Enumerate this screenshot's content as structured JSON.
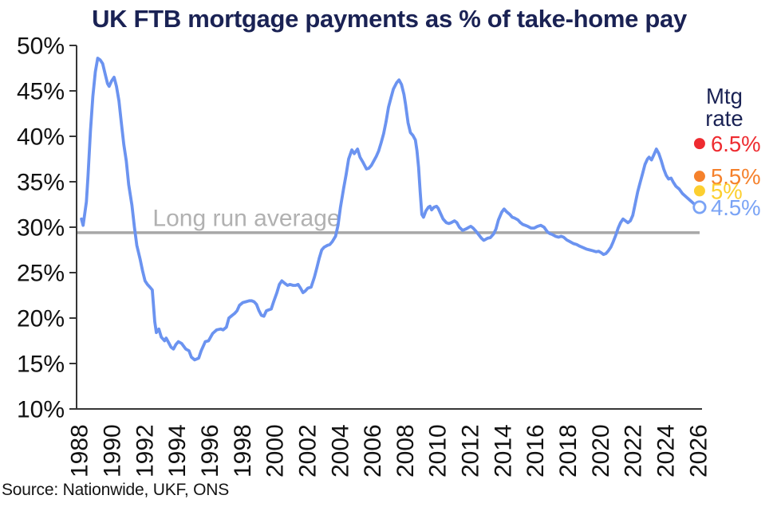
{
  "page": {
    "title": "UK FTB mortgage payments as % of take-home pay",
    "source": "Source: Nationwide, UKF, ONS"
  },
  "colors": {
    "title": "#1a2254",
    "line": "#6b93f0",
    "average_line": "#a7a7a7",
    "average_label": "#b1b1b1",
    "axis": "#363636",
    "tick_label": "#111111",
    "legend_title": "#1a2254",
    "rate_6_5": "#ee2b30",
    "rate_5_5": "#f5812c",
    "rate_5": "#fccf30",
    "rate_4_5": "#7aa3f5",
    "background": "#ffffff"
  },
  "chart_data": {
    "type": "line",
    "title": "UK FTB mortgage payments as % of take-home pay",
    "source": "Source: Nationwide, UKF, ONS",
    "xlabel": "",
    "ylabel": "",
    "xlim": [
      1987.8,
      2026.2
    ],
    "ylim": [
      10,
      50
    ],
    "yticks": [
      10,
      15,
      20,
      25,
      30,
      35,
      40,
      45,
      50
    ],
    "ytick_suffix": "%",
    "xticks": [
      1988,
      1990,
      1992,
      1994,
      1996,
      1998,
      2000,
      2002,
      2004,
      2006,
      2008,
      2010,
      2012,
      2014,
      2016,
      2018,
      2020,
      2022,
      2024,
      2026
    ],
    "grid": false,
    "average_line": {
      "label": "Long run average",
      "value": 29.4
    },
    "series": [
      {
        "name": "FTB mortgage payments as % of take-home pay",
        "color": "#6b93f0",
        "points": [
          [
            1988.1,
            30.9
          ],
          [
            1988.2,
            30.2
          ],
          [
            1988.4,
            32.8
          ],
          [
            1988.5,
            35.6
          ],
          [
            1988.65,
            40.6
          ],
          [
            1988.8,
            44.4
          ],
          [
            1988.95,
            47.1
          ],
          [
            1989.1,
            48.6
          ],
          [
            1989.25,
            48.4
          ],
          [
            1989.4,
            48.0
          ],
          [
            1989.55,
            46.9
          ],
          [
            1989.7,
            45.8
          ],
          [
            1989.8,
            45.5
          ],
          [
            1989.95,
            46.1
          ],
          [
            1990.1,
            46.5
          ],
          [
            1990.25,
            45.5
          ],
          [
            1990.4,
            43.9
          ],
          [
            1990.55,
            41.5
          ],
          [
            1990.7,
            39.1
          ],
          [
            1990.85,
            37.3
          ],
          [
            1991.0,
            34.7
          ],
          [
            1991.2,
            32.4
          ],
          [
            1991.35,
            30.0
          ],
          [
            1991.5,
            28.0
          ],
          [
            1991.7,
            26.5
          ],
          [
            1991.85,
            25.2
          ],
          [
            1992.0,
            24.1
          ],
          [
            1992.15,
            23.7
          ],
          [
            1992.3,
            23.4
          ],
          [
            1992.45,
            23.1
          ],
          [
            1992.6,
            19.6
          ],
          [
            1992.7,
            18.4
          ],
          [
            1992.85,
            18.8
          ],
          [
            1993.0,
            17.9
          ],
          [
            1993.2,
            17.5
          ],
          [
            1993.3,
            17.8
          ],
          [
            1993.45,
            17.3
          ],
          [
            1993.6,
            16.8
          ],
          [
            1993.75,
            16.6
          ],
          [
            1993.9,
            17.1
          ],
          [
            1994.05,
            17.4
          ],
          [
            1994.25,
            17.2
          ],
          [
            1994.5,
            16.6
          ],
          [
            1994.7,
            16.4
          ],
          [
            1994.85,
            15.7
          ],
          [
            1995.05,
            15.4
          ],
          [
            1995.3,
            15.6
          ],
          [
            1995.45,
            16.4
          ],
          [
            1995.7,
            17.4
          ],
          [
            1995.9,
            17.5
          ],
          [
            1996.15,
            18.3
          ],
          [
            1996.4,
            18.7
          ],
          [
            1996.65,
            18.8
          ],
          [
            1996.8,
            18.7
          ],
          [
            1997.0,
            19.0
          ],
          [
            1997.15,
            20.0
          ],
          [
            1997.35,
            20.3
          ],
          [
            1997.5,
            20.5
          ],
          [
            1997.65,
            20.8
          ],
          [
            1997.8,
            21.4
          ],
          [
            1998.0,
            21.7
          ],
          [
            1998.2,
            21.8
          ],
          [
            1998.4,
            21.9
          ],
          [
            1998.55,
            21.9
          ],
          [
            1998.7,
            21.8
          ],
          [
            1998.85,
            21.5
          ],
          [
            1999.0,
            20.8
          ],
          [
            1999.15,
            20.3
          ],
          [
            1999.3,
            20.2
          ],
          [
            1999.45,
            20.8
          ],
          [
            1999.6,
            20.9
          ],
          [
            1999.75,
            21.0
          ],
          [
            1999.9,
            21.8
          ],
          [
            2000.1,
            22.8
          ],
          [
            2000.25,
            23.7
          ],
          [
            2000.4,
            24.1
          ],
          [
            2000.6,
            23.8
          ],
          [
            2000.75,
            23.6
          ],
          [
            2000.9,
            23.7
          ],
          [
            2001.1,
            23.6
          ],
          [
            2001.25,
            23.6
          ],
          [
            2001.4,
            23.7
          ],
          [
            2001.55,
            23.3
          ],
          [
            2001.7,
            22.8
          ],
          [
            2001.85,
            23.0
          ],
          [
            2002.0,
            23.3
          ],
          [
            2002.2,
            23.4
          ],
          [
            2002.4,
            24.5
          ],
          [
            2002.55,
            25.5
          ],
          [
            2002.7,
            26.6
          ],
          [
            2002.85,
            27.5
          ],
          [
            2003.0,
            27.8
          ],
          [
            2003.2,
            28.0
          ],
          [
            2003.35,
            28.1
          ],
          [
            2003.5,
            28.4
          ],
          [
            2003.7,
            29.0
          ],
          [
            2003.85,
            30.2
          ],
          [
            2004.0,
            32.2
          ],
          [
            2004.2,
            34.3
          ],
          [
            2004.35,
            35.8
          ],
          [
            2004.5,
            37.5
          ],
          [
            2004.7,
            38.5
          ],
          [
            2004.85,
            38.1
          ],
          [
            2005.05,
            38.6
          ],
          [
            2005.2,
            37.7
          ],
          [
            2005.4,
            37.1
          ],
          [
            2005.6,
            36.4
          ],
          [
            2005.75,
            36.5
          ],
          [
            2005.9,
            36.8
          ],
          [
            2006.05,
            37.3
          ],
          [
            2006.2,
            37.8
          ],
          [
            2006.35,
            38.4
          ],
          [
            2006.5,
            39.3
          ],
          [
            2006.65,
            40.3
          ],
          [
            2006.8,
            41.6
          ],
          [
            2006.95,
            43.2
          ],
          [
            2007.1,
            44.2
          ],
          [
            2007.25,
            45.2
          ],
          [
            2007.45,
            45.9
          ],
          [
            2007.6,
            46.2
          ],
          [
            2007.75,
            45.7
          ],
          [
            2007.9,
            44.6
          ],
          [
            2008.0,
            43.5
          ],
          [
            2008.15,
            41.5
          ],
          [
            2008.3,
            40.4
          ],
          [
            2008.45,
            40.1
          ],
          [
            2008.6,
            39.6
          ],
          [
            2008.7,
            38.4
          ],
          [
            2008.8,
            36.6
          ],
          [
            2008.9,
            33.8
          ],
          [
            2009.0,
            31.4
          ],
          [
            2009.1,
            31.1
          ],
          [
            2009.25,
            31.8
          ],
          [
            2009.4,
            32.2
          ],
          [
            2009.5,
            32.3
          ],
          [
            2009.6,
            31.9
          ],
          [
            2009.75,
            32.2
          ],
          [
            2009.9,
            32.3
          ],
          [
            2010.0,
            32.1
          ],
          [
            2010.15,
            31.5
          ],
          [
            2010.3,
            30.9
          ],
          [
            2010.5,
            30.5
          ],
          [
            2010.65,
            30.4
          ],
          [
            2010.8,
            30.5
          ],
          [
            2011.0,
            30.7
          ],
          [
            2011.15,
            30.5
          ],
          [
            2011.3,
            30.0
          ],
          [
            2011.5,
            29.65
          ],
          [
            2011.7,
            29.8
          ],
          [
            2011.9,
            30.0
          ],
          [
            2012.0,
            30.1
          ],
          [
            2012.15,
            29.9
          ],
          [
            2012.3,
            29.6
          ],
          [
            2012.5,
            29.15
          ],
          [
            2012.65,
            28.8
          ],
          [
            2012.8,
            28.55
          ],
          [
            2012.9,
            28.65
          ],
          [
            2013.05,
            28.8
          ],
          [
            2013.2,
            28.85
          ],
          [
            2013.4,
            29.25
          ],
          [
            2013.55,
            29.8
          ],
          [
            2013.7,
            30.8
          ],
          [
            2013.9,
            31.65
          ],
          [
            2014.05,
            32.0
          ],
          [
            2014.2,
            31.7
          ],
          [
            2014.4,
            31.4
          ],
          [
            2014.55,
            31.1
          ],
          [
            2014.7,
            31.0
          ],
          [
            2014.9,
            30.8
          ],
          [
            2015.05,
            30.5
          ],
          [
            2015.2,
            30.3
          ],
          [
            2015.35,
            30.2
          ],
          [
            2015.5,
            30.1
          ],
          [
            2015.7,
            29.9
          ],
          [
            2015.9,
            29.9
          ],
          [
            2016.1,
            30.1
          ],
          [
            2016.3,
            30.2
          ],
          [
            2016.5,
            30.0
          ],
          [
            2016.7,
            29.5
          ],
          [
            2016.85,
            29.3
          ],
          [
            2017.0,
            29.2
          ],
          [
            2017.2,
            29.0
          ],
          [
            2017.4,
            28.9
          ],
          [
            2017.55,
            29.0
          ],
          [
            2017.7,
            28.9
          ],
          [
            2017.9,
            28.6
          ],
          [
            2018.1,
            28.4
          ],
          [
            2018.3,
            28.2
          ],
          [
            2018.5,
            28.1
          ],
          [
            2018.7,
            27.9
          ],
          [
            2018.9,
            27.75
          ],
          [
            2019.1,
            27.6
          ],
          [
            2019.3,
            27.5
          ],
          [
            2019.5,
            27.4
          ],
          [
            2019.7,
            27.3
          ],
          [
            2019.85,
            27.35
          ],
          [
            2020.0,
            27.2
          ],
          [
            2020.15,
            27.0
          ],
          [
            2020.3,
            27.1
          ],
          [
            2020.45,
            27.4
          ],
          [
            2020.6,
            27.8
          ],
          [
            2020.75,
            28.4
          ],
          [
            2020.9,
            29.1
          ],
          [
            2021.05,
            29.9
          ],
          [
            2021.2,
            30.5
          ],
          [
            2021.35,
            30.9
          ],
          [
            2021.5,
            30.7
          ],
          [
            2021.65,
            30.5
          ],
          [
            2021.8,
            30.7
          ],
          [
            2021.95,
            31.3
          ],
          [
            2022.1,
            32.6
          ],
          [
            2022.25,
            33.9
          ],
          [
            2022.4,
            34.9
          ],
          [
            2022.55,
            35.9
          ],
          [
            2022.7,
            36.9
          ],
          [
            2022.85,
            37.5
          ],
          [
            2022.95,
            37.7
          ],
          [
            2023.1,
            37.4
          ],
          [
            2023.25,
            38.0
          ],
          [
            2023.4,
            38.6
          ],
          [
            2023.55,
            38.1
          ],
          [
            2023.7,
            37.3
          ],
          [
            2023.85,
            36.4
          ],
          [
            2024.0,
            35.7
          ],
          [
            2024.15,
            35.3
          ],
          [
            2024.3,
            35.4
          ],
          [
            2024.45,
            34.9
          ],
          [
            2024.6,
            34.5
          ],
          [
            2024.8,
            34.2
          ],
          [
            2025.0,
            33.7
          ],
          [
            2025.25,
            33.3
          ],
          [
            2025.5,
            32.9
          ],
          [
            2025.75,
            32.5
          ],
          [
            2026.0,
            32.2
          ]
        ]
      }
    ],
    "scenarios": {
      "title": "Mtg rate",
      "title_lines": [
        "Mtg",
        "rate"
      ],
      "x": 2026.05,
      "items": [
        {
          "label": "6.5%",
          "value": 39.2,
          "color": "#ee2b30",
          "marker": "filled"
        },
        {
          "label": "5.5%",
          "value": 35.6,
          "color": "#f5812c",
          "marker": "filled"
        },
        {
          "label": "5%",
          "value": 34.0,
          "color": "#fccf30",
          "marker": "filled"
        },
        {
          "label": "4.5%",
          "value": 32.2,
          "color": "#7aa3f5",
          "marker": "open"
        }
      ]
    }
  }
}
